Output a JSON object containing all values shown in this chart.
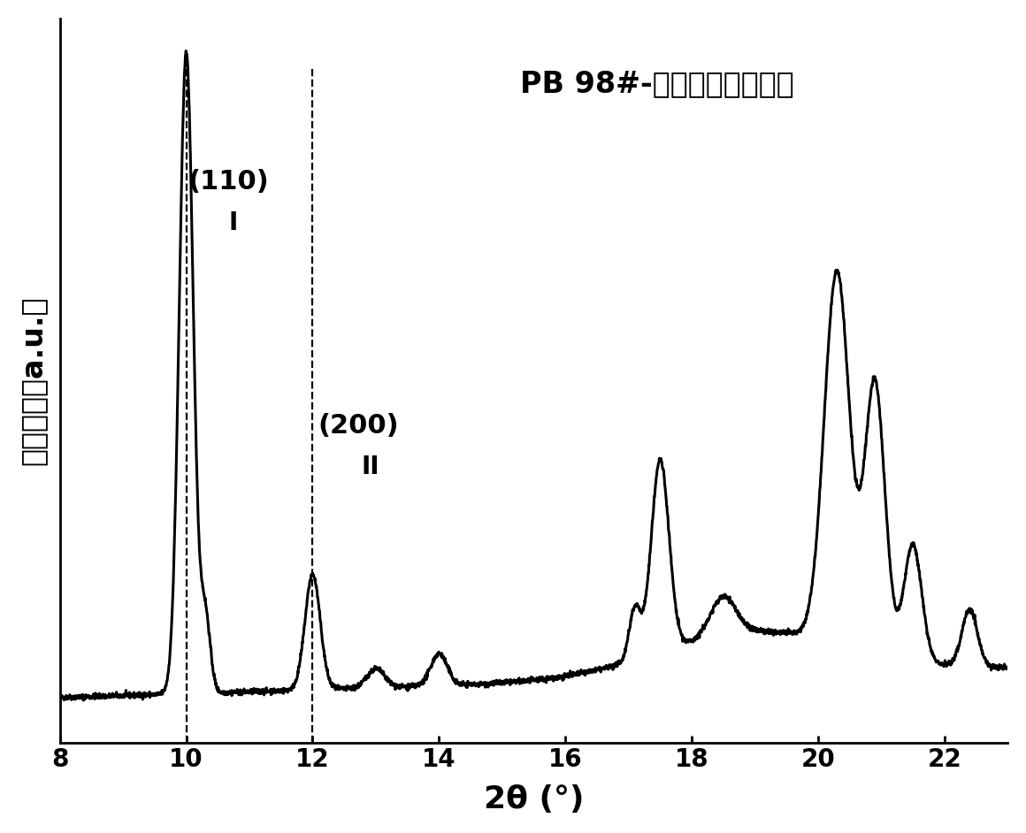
{
  "title": "PB 98#-室温放置一月以上",
  "xlabel": "2θ (°)",
  "ylabel": "散射强度（a.u.）",
  "xmin": 8,
  "xmax": 23.0,
  "dashed_lines": [
    10.0,
    12.0
  ],
  "background_color": "#ffffff",
  "line_color": "#000000",
  "title_fontsize": 24,
  "label_fontsize": 22,
  "tick_fontsize": 20,
  "annotation_fontsize": 20
}
